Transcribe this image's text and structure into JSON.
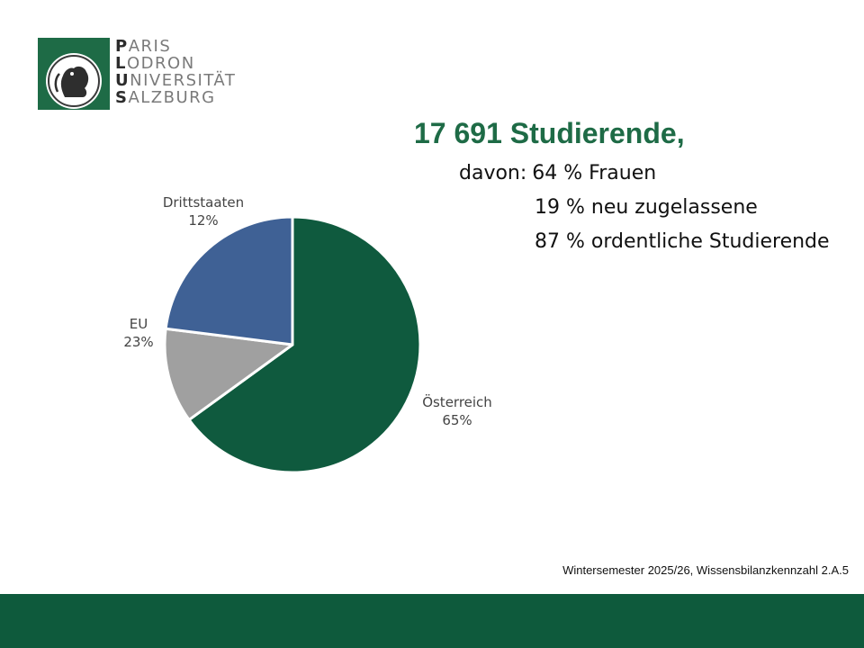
{
  "logo": {
    "lines": [
      {
        "cap": "P",
        "rest": "ARIS"
      },
      {
        "cap": "L",
        "rest": "ODRON"
      },
      {
        "cap": "U",
        "rest": "NIVERSITÄT"
      },
      {
        "cap": "S",
        "rest": "ALZBURG"
      }
    ],
    "accent_color": "#1e6b46",
    "emblem_icon": "lion-seal-icon"
  },
  "headline": "17 691 Studierende,",
  "facts": {
    "prefix": "davon:",
    "lines": [
      "64 % Frauen",
      "19 % neu zugelassene",
      "87 % ordentliche Studierende"
    ]
  },
  "chart_data": {
    "type": "pie",
    "title": "",
    "slices": [
      {
        "name": "Österreich",
        "value": 65,
        "label": "65%",
        "color": "#0f5a3e"
      },
      {
        "name": "Drittstaaten",
        "value": 12,
        "label": "12%",
        "color": "#a0a0a0"
      },
      {
        "name": "EU",
        "value": 23,
        "label": "23%",
        "color": "#3f6195"
      }
    ],
    "start": "12 o'clock",
    "direction": "clockwise",
    "legend": "none"
  },
  "footnote": "Wintersemester 2025/26, Wissensbilanzkennzahl 2.A.5",
  "footer_color": "#0e5a3c"
}
